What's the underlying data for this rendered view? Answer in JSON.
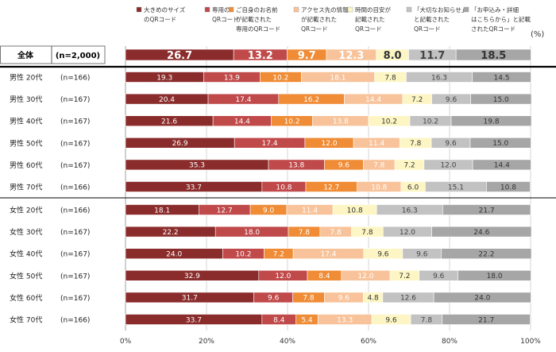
{
  "chart_data": {
    "type": "bar",
    "orientation": "horizontal-stacked-100",
    "unit": "(%)",
    "xlim": [
      0,
      100
    ],
    "x_ticks": [
      "0%",
      "20%",
      "40%",
      "60%",
      "80%",
      "100%"
    ],
    "legend_position": "top",
    "series": [
      {
        "name": [
          "大きめのサイズ",
          "のQRコード"
        ],
        "color": "#8b2c2c",
        "text": "#ffffff"
      },
      {
        "name": [
          "専用の",
          "QRコード"
        ],
        "color": "#c0494a",
        "text": "#ffffff"
      },
      {
        "name": [
          "ご自身のお名前",
          "が記載された",
          "専用のQRコード"
        ],
        "color": "#ef8c35",
        "text": "#ffffff"
      },
      {
        "name": [
          "アクセス先の情報",
          "が記載された",
          "QRコード"
        ],
        "color": "#f8c39a",
        "text": "#ffffff"
      },
      {
        "name": [
          "時間の目安が",
          "記載された",
          "QRコード"
        ],
        "color": "#fdf6c4",
        "text": "#333333"
      },
      {
        "name": [
          "「大切なお知らせ」",
          "と記載された",
          "QRコード"
        ],
        "color": "#c2c2c2",
        "text": "#444444"
      },
      {
        "name": [
          "「お申込み・詳細",
          "はこちらから」と記載",
          "されたQRコード"
        ],
        "color": "#a6a6a6",
        "text": "#333333"
      }
    ],
    "rows": [
      {
        "group": "全体",
        "n": "(n=2,000)",
        "values": [
          26.7,
          13.2,
          9.7,
          12.3,
          8.0,
          11.7,
          18.5
        ],
        "total": true
      },
      {
        "group": "男性  20代",
        "n": "(n=166)",
        "values": [
          19.3,
          13.9,
          10.2,
          18.1,
          7.8,
          16.3,
          14.5
        ]
      },
      {
        "group": "男性  30代",
        "n": "(n=167)",
        "values": [
          20.4,
          17.4,
          16.2,
          14.4,
          7.2,
          9.6,
          15.0
        ]
      },
      {
        "group": "男性  40代",
        "n": "(n=167)",
        "values": [
          21.6,
          14.4,
          10.2,
          13.8,
          10.2,
          10.2,
          19.8
        ]
      },
      {
        "group": "男性  50代",
        "n": "(n=167)",
        "values": [
          26.9,
          17.4,
          12.0,
          11.4,
          7.8,
          9.6,
          15.0
        ]
      },
      {
        "group": "男性  60代",
        "n": "(n=167)",
        "values": [
          35.3,
          13.8,
          9.6,
          7.8,
          7.2,
          12.0,
          14.4
        ]
      },
      {
        "group": "男性  70代",
        "n": "(n=166)",
        "values": [
          33.7,
          10.8,
          12.7,
          10.8,
          6.0,
          15.1,
          10.8
        ]
      },
      {
        "group": "女性  20代",
        "n": "(n=166)",
        "values": [
          18.1,
          12.7,
          9.0,
          11.4,
          10.8,
          16.3,
          21.7
        ]
      },
      {
        "group": "女性  30代",
        "n": "(n=167)",
        "values": [
          22.2,
          18.0,
          7.8,
          7.8,
          7.8,
          12.0,
          24.6
        ]
      },
      {
        "group": "女性  40代",
        "n": "(n=167)",
        "values": [
          24.0,
          10.2,
          7.2,
          17.4,
          9.6,
          9.6,
          22.2
        ]
      },
      {
        "group": "女性  50代",
        "n": "(n=167)",
        "values": [
          32.9,
          12.0,
          8.4,
          12.0,
          7.2,
          9.6,
          18.0
        ]
      },
      {
        "group": "女性  60代",
        "n": "(n=167)",
        "values": [
          31.7,
          9.6,
          7.8,
          9.6,
          4.8,
          12.6,
          24.0
        ]
      },
      {
        "group": "女性  70代",
        "n": "(n=166)",
        "values": [
          33.7,
          8.4,
          5.4,
          13.3,
          9.6,
          7.8,
          21.7
        ]
      }
    ]
  }
}
